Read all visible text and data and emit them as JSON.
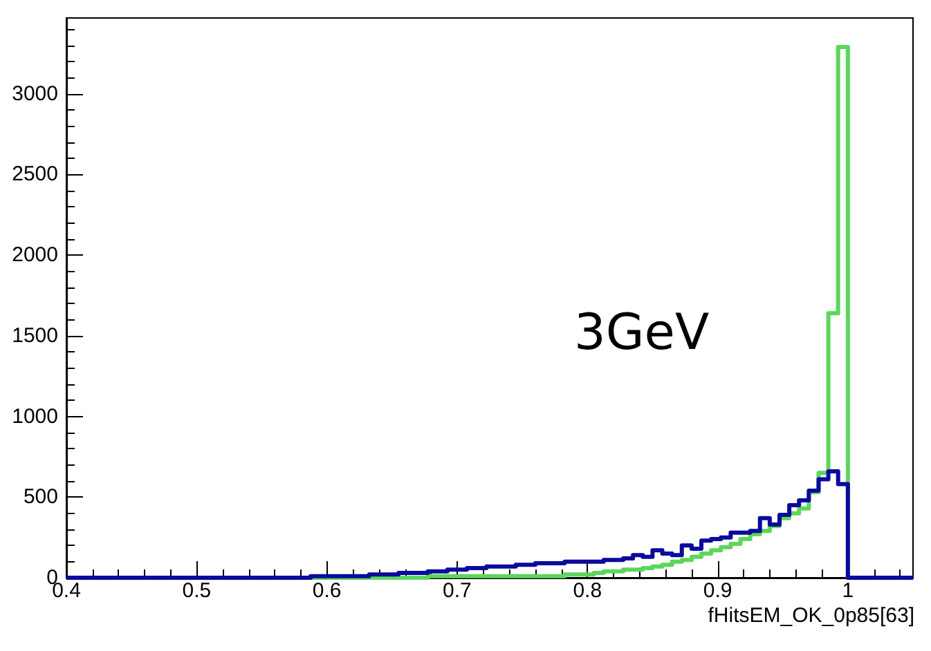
{
  "chart_data": {
    "type": "histogram",
    "xlabel": "fHitsEM_OK_0p85[63]",
    "annotations": [
      "3GeV"
    ],
    "bins": [
      0.4,
      0.4075,
      0.415,
      0.4225,
      0.43,
      0.4375,
      0.445,
      0.4525,
      0.46,
      0.4675,
      0.475,
      0.4825,
      0.49,
      0.4975,
      0.505,
      0.5125,
      0.52,
      0.5275,
      0.535,
      0.5425,
      0.55,
      0.5575,
      0.565,
      0.5725,
      0.58,
      0.5875,
      0.595,
      0.6025,
      0.61,
      0.6175,
      0.625,
      0.6325,
      0.64,
      0.6475,
      0.655,
      0.6625,
      0.67,
      0.6775,
      0.685,
      0.6925,
      0.7,
      0.7075,
      0.715,
      0.7225,
      0.73,
      0.7375,
      0.745,
      0.7525,
      0.76,
      0.7675,
      0.775,
      0.7825,
      0.79,
      0.7975,
      0.805,
      0.8125,
      0.82,
      0.8275,
      0.835,
      0.8425,
      0.85,
      0.8575,
      0.865,
      0.8725,
      0.88,
      0.8875,
      0.895,
      0.9025,
      0.91,
      0.9175,
      0.925,
      0.9325,
      0.94,
      0.9475,
      0.955,
      0.9625,
      0.97,
      0.9775,
      0.985,
      0.9925,
      1.0,
      1.05
    ],
    "series": [
      {
        "color": "#5cd65c",
        "values": [
          0,
          0,
          0,
          0,
          0,
          0,
          0,
          0,
          0,
          0,
          0,
          0,
          0,
          0,
          0,
          0,
          0,
          0,
          0,
          0,
          0,
          0,
          0,
          0,
          0,
          0,
          0,
          0,
          0,
          0,
          0,
          0,
          0,
          0,
          0,
          0,
          0,
          10,
          10,
          10,
          10,
          10,
          10,
          10,
          10,
          10,
          10,
          10,
          10,
          10,
          10,
          20,
          20,
          20,
          30,
          40,
          40,
          50,
          50,
          60,
          70,
          80,
          100,
          110,
          130,
          150,
          170,
          190,
          210,
          240,
          270,
          290,
          320,
          370,
          400,
          430,
          530,
          650,
          1640,
          3290,
          0
        ]
      },
      {
        "color": "#0a0a9c",
        "values": [
          0,
          0,
          0,
          0,
          0,
          0,
          0,
          0,
          0,
          0,
          0,
          0,
          0,
          0,
          0,
          0,
          0,
          0,
          0,
          0,
          0,
          0,
          0,
          0,
          0,
          10,
          10,
          10,
          10,
          10,
          10,
          20,
          20,
          20,
          30,
          30,
          30,
          40,
          40,
          50,
          50,
          60,
          60,
          70,
          70,
          70,
          80,
          80,
          90,
          90,
          90,
          100,
          100,
          100,
          100,
          110,
          110,
          120,
          140,
          130,
          170,
          150,
          140,
          200,
          180,
          230,
          240,
          250,
          280,
          280,
          290,
          370,
          330,
          390,
          450,
          480,
          540,
          610,
          660,
          580,
          0
        ]
      }
    ],
    "xlim": [
      0.4,
      1.05
    ],
    "xticks": [
      0.4,
      0.5,
      0.6,
      0.7,
      0.8,
      0.9,
      1
    ],
    "ylim": [
      0,
      3470
    ],
    "yticks": [
      0,
      500,
      1000,
      1500,
      2000,
      2500,
      3000
    ],
    "grid": false
  }
}
